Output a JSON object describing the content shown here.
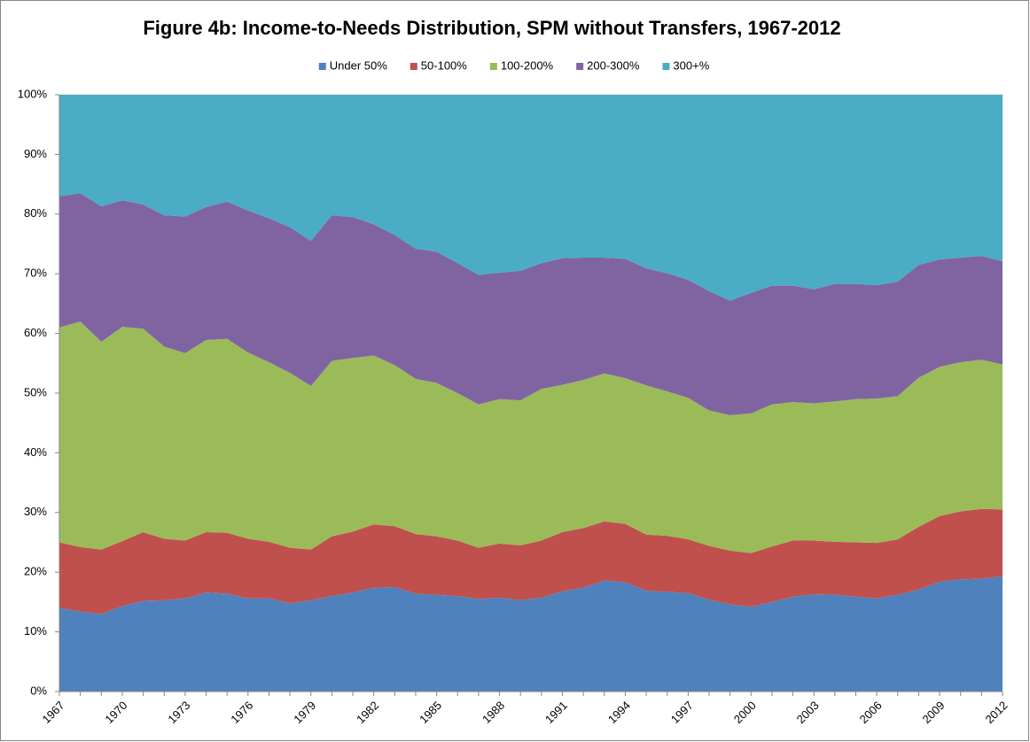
{
  "chart_data": {
    "type": "stacked_area",
    "title": "Figure 4b: Income-to-Needs Distribution, SPM without Transfers, 1967-2012",
    "categories": [
      "1967",
      null,
      null,
      "1970",
      null,
      null,
      "1973",
      null,
      null,
      "1976",
      null,
      null,
      "1979",
      null,
      null,
      "1982",
      null,
      null,
      "1985",
      null,
      null,
      "1988",
      null,
      null,
      "1991",
      null,
      null,
      "1994",
      null,
      null,
      "1997",
      null,
      null,
      "2000",
      null,
      null,
      "2003",
      null,
      null,
      "2006",
      null,
      null,
      "2009",
      null,
      null,
      "2012"
    ],
    "series": [
      {
        "name": "Under 50%",
        "color": "#4f81bd",
        "values": [
          14.0,
          13.4,
          13.0,
          14.3,
          15.2,
          15.3,
          15.6,
          16.6,
          16.4,
          15.6,
          15.6,
          14.8,
          15.3,
          16.0,
          16.6,
          17.4,
          17.5,
          16.4,
          16.2,
          16.0,
          15.5,
          15.7,
          15.3,
          15.7,
          16.8,
          17.4,
          18.6,
          18.3,
          16.9,
          16.7,
          16.5,
          15.4,
          14.6,
          14.2,
          15.0,
          15.9,
          16.3,
          16.2,
          15.9,
          15.6,
          16.2,
          17.1,
          18.4,
          18.8,
          18.9,
          19.3
        ]
      },
      {
        "name": "50-100%",
        "color": "#c0504d",
        "values": [
          11.0,
          10.8,
          10.8,
          10.9,
          11.5,
          10.3,
          9.7,
          10.1,
          10.2,
          10.0,
          9.5,
          9.3,
          8.5,
          10.0,
          10.2,
          10.6,
          10.2,
          10.0,
          9.8,
          9.3,
          8.6,
          9.1,
          9.2,
          9.6,
          9.9,
          10.0,
          9.9,
          9.8,
          9.4,
          9.4,
          9.0,
          9.0,
          9.0,
          9.0,
          9.3,
          9.4,
          9.0,
          8.9,
          9.1,
          9.3,
          9.3,
          10.5,
          11.0,
          11.4,
          11.7,
          11.2
        ]
      },
      {
        "name": "100-200%",
        "color": "#9bbb59",
        "values": [
          36.0,
          37.8,
          34.8,
          35.9,
          34.1,
          32.2,
          31.4,
          32.2,
          32.5,
          31.2,
          30.1,
          29.3,
          27.4,
          29.4,
          29.1,
          28.3,
          27.0,
          26.0,
          25.7,
          24.7,
          24.0,
          24.2,
          24.3,
          25.4,
          24.7,
          24.8,
          24.8,
          24.4,
          25.0,
          24.2,
          23.7,
          22.7,
          22.7,
          23.4,
          23.8,
          23.2,
          23.0,
          23.5,
          24.0,
          24.2,
          24.0,
          25.0,
          25.0,
          25.0,
          25.0,
          24.3
        ]
      },
      {
        "name": "200-300%",
        "color": "#8064a2",
        "values": [
          22.0,
          21.5,
          22.7,
          21.2,
          20.8,
          22.0,
          22.9,
          22.3,
          23.0,
          23.8,
          24.1,
          24.4,
          24.3,
          24.4,
          23.6,
          22.0,
          21.8,
          21.8,
          22.0,
          21.8,
          21.7,
          21.2,
          21.7,
          21.1,
          21.2,
          20.5,
          19.4,
          20.0,
          19.6,
          19.8,
          19.8,
          20.0,
          19.2,
          20.2,
          19.9,
          19.5,
          19.1,
          19.7,
          19.3,
          19.0,
          19.2,
          18.9,
          18.0,
          17.5,
          17.4,
          17.3
        ]
      },
      {
        "name": "300+%",
        "color": "#4bacc6",
        "values": [
          17.0,
          16.5,
          18.7,
          17.7,
          18.4,
          20.2,
          20.4,
          18.8,
          17.9,
          19.4,
          20.7,
          22.2,
          24.5,
          20.2,
          20.5,
          21.7,
          23.5,
          25.8,
          26.3,
          28.2,
          30.2,
          29.8,
          29.5,
          28.2,
          27.4,
          27.3,
          27.3,
          27.5,
          29.1,
          29.9,
          31.0,
          32.9,
          34.5,
          33.2,
          32.0,
          32.0,
          32.6,
          31.7,
          31.7,
          31.9,
          31.3,
          28.5,
          27.6,
          27.3,
          27.0,
          27.9
        ]
      }
    ],
    "ylim": [
      0,
      100
    ],
    "yticks": [
      {
        "value": 0,
        "label": "0%"
      },
      {
        "value": 10,
        "label": "10%"
      },
      {
        "value": 20,
        "label": "20%"
      },
      {
        "value": 30,
        "label": "30%"
      },
      {
        "value": 40,
        "label": "40%"
      },
      {
        "value": 50,
        "label": "50%"
      },
      {
        "value": 60,
        "label": "60%"
      },
      {
        "value": 70,
        "label": "70%"
      },
      {
        "value": 80,
        "label": "80%"
      },
      {
        "value": 90,
        "label": "90%"
      },
      {
        "value": 100,
        "label": "100%"
      }
    ],
    "grid": true,
    "legend": "top"
  }
}
